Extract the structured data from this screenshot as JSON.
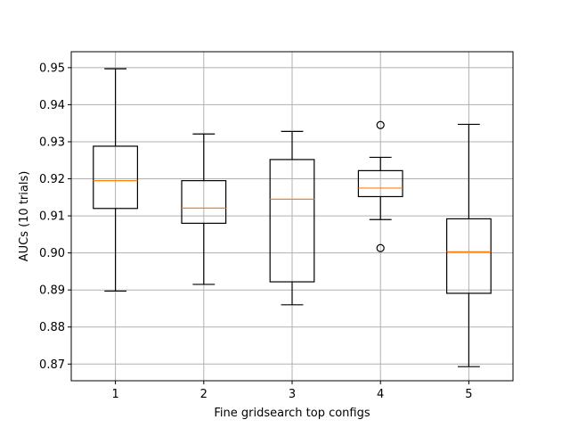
{
  "chart_data": {
    "type": "box",
    "title": "",
    "xlabel": "Fine gridsearch top configs",
    "ylabel": "AUCs (10 trials)",
    "categories": [
      "1",
      "2",
      "3",
      "4",
      "5"
    ],
    "ylim": [
      0.8655,
      0.9543
    ],
    "yticks": [
      0.87,
      0.88,
      0.89,
      0.9,
      0.91,
      0.92,
      0.93,
      0.94,
      0.95
    ],
    "ytick_labels": [
      "0.87",
      "0.88",
      "0.89",
      "0.90",
      "0.91",
      "0.92",
      "0.93",
      "0.94",
      "0.95"
    ],
    "grid": true,
    "boxes": [
      {
        "category": "1",
        "whisker_low": 0.8897,
        "q1": 0.912,
        "median": 0.9195,
        "q3": 0.9288,
        "whisker_high": 0.9497,
        "outliers": []
      },
      {
        "category": "2",
        "whisker_low": 0.8915,
        "q1": 0.908,
        "median": 0.9121,
        "q3": 0.9195,
        "whisker_high": 0.9321,
        "outliers": []
      },
      {
        "category": "3",
        "whisker_low": 0.886,
        "q1": 0.8922,
        "median": 0.9145,
        "q3": 0.9252,
        "whisker_high": 0.9328,
        "outliers": []
      },
      {
        "category": "4",
        "whisker_low": 0.909,
        "q1": 0.9152,
        "median": 0.9175,
        "q3": 0.9222,
        "whisker_high": 0.9258,
        "outliers": [
          0.9345,
          0.9013
        ]
      },
      {
        "category": "5",
        "whisker_low": 0.8693,
        "q1": 0.8891,
        "median": 0.9003,
        "q3": 0.9092,
        "whisker_high": 0.9347,
        "outliers": []
      }
    ],
    "colors": {
      "box": "#000000",
      "median": "#ff7f0e",
      "grid": "#b0b0b0"
    }
  }
}
